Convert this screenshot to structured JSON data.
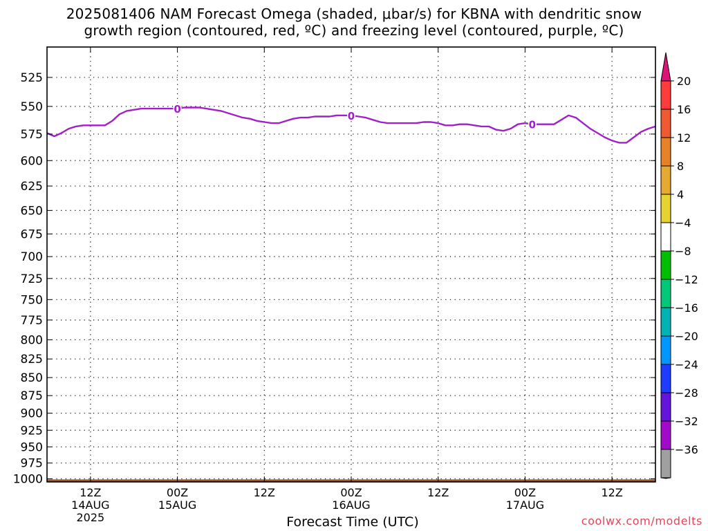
{
  "title": {
    "line1": "2025081406 NAM Forecast Omega (shaded, μbar/s) for KBNA with dendritic snow",
    "line2": "growth region (contoured, red, ºC) and freezing level (contoured, purple, ºC)"
  },
  "xlabel": "Forecast Time (UTC)",
  "credit": "coolwx.com/modelts",
  "chart_data": {
    "type": "line",
    "title": "2025081406 NAM Forecast Omega (shaded, μbar/s) for KBNA with dendritic snow growth region (contoured, red, ºC) and freezing level (contoured, purple, ºC)",
    "xlabel": "Forecast Time (UTC)",
    "ylabel": "",
    "y_axis": {
      "unit": "pressure (hPa)",
      "inverted": true,
      "log_scale": true,
      "ylim": [
        1005,
        500
      ],
      "ticks": [
        525,
        550,
        575,
        600,
        625,
        650,
        675,
        700,
        725,
        750,
        775,
        800,
        825,
        850,
        875,
        900,
        925,
        950,
        975,
        1000
      ]
    },
    "x_axis": {
      "unit": "forecast hour from 2025-08-14 06Z",
      "xlim": [
        6,
        90
      ],
      "ticks": [
        {
          "x": 12,
          "lines": [
            "12Z",
            "14AUG",
            "2025"
          ]
        },
        {
          "x": 24,
          "lines": [
            "00Z",
            "15AUG"
          ]
        },
        {
          "x": 36,
          "lines": [
            "12Z"
          ]
        },
        {
          "x": 48,
          "lines": [
            "00Z",
            "16AUG"
          ]
        },
        {
          "x": 60,
          "lines": [
            "12Z"
          ]
        },
        {
          "x": 72,
          "lines": [
            "00Z",
            "17AUG"
          ]
        },
        {
          "x": 84,
          "lines": [
            "12Z"
          ]
        }
      ]
    },
    "grid": true,
    "series": [
      {
        "name": "0",
        "color": "#a020c8",
        "contour_label": "0",
        "label_x": [
          24,
          48,
          73
        ],
        "x": [
          6,
          7,
          8,
          9,
          10,
          11,
          12,
          13,
          14,
          15,
          16,
          17,
          18,
          19,
          20,
          21,
          22,
          23,
          24,
          25,
          26,
          27,
          28,
          29,
          30,
          31,
          32,
          33,
          34,
          35,
          36,
          37,
          38,
          39,
          40,
          41,
          42,
          43,
          44,
          45,
          46,
          47,
          48,
          49,
          50,
          51,
          52,
          53,
          54,
          55,
          56,
          57,
          58,
          59,
          60,
          61,
          62,
          63,
          64,
          65,
          66,
          67,
          68,
          69,
          70,
          71,
          72,
          73,
          74,
          75,
          76,
          77,
          78,
          79,
          80,
          81,
          82,
          83,
          84,
          85,
          86,
          87,
          88,
          89,
          90
        ],
        "y": [
          574,
          577,
          574,
          570,
          568,
          567,
          567,
          567,
          567,
          563,
          557,
          554,
          553,
          552,
          552,
          552,
          552,
          552,
          552,
          551,
          551,
          551,
          552,
          553,
          554,
          556,
          558,
          560,
          561,
          563,
          564,
          565,
          565,
          563,
          561,
          560,
          560,
          559,
          559,
          559,
          558,
          558,
          558,
          559,
          560,
          562,
          564,
          565,
          565,
          565,
          565,
          565,
          564,
          564,
          565,
          567,
          567,
          566,
          566,
          567,
          568,
          568,
          571,
          572,
          570,
          566,
          565,
          566,
          566,
          566,
          566,
          562,
          558,
          560,
          565,
          570,
          574,
          578,
          581,
          583,
          583,
          578,
          573,
          570,
          568
        ]
      }
    ],
    "surface_fill": {
      "color": "#a0522d",
      "pressure": 1001
    },
    "colorbar": {
      "unit": "μbar/s",
      "labels": [
        20,
        16,
        12,
        8,
        4,
        -4,
        -8,
        -12,
        -16,
        -20,
        -24,
        -28,
        -32,
        -36
      ],
      "colors": [
        "#dc1478",
        "#ff3c3c",
        "#f05a32",
        "#e68228",
        "#e6aa32",
        "#e6d232",
        "#ffffff",
        "#00be00",
        "#00c878",
        "#00b4b4",
        "#0096ff",
        "#1e3cff",
        "#6414dc",
        "#a00ac8",
        "#a0a0a0",
        "#000000"
      ]
    }
  }
}
